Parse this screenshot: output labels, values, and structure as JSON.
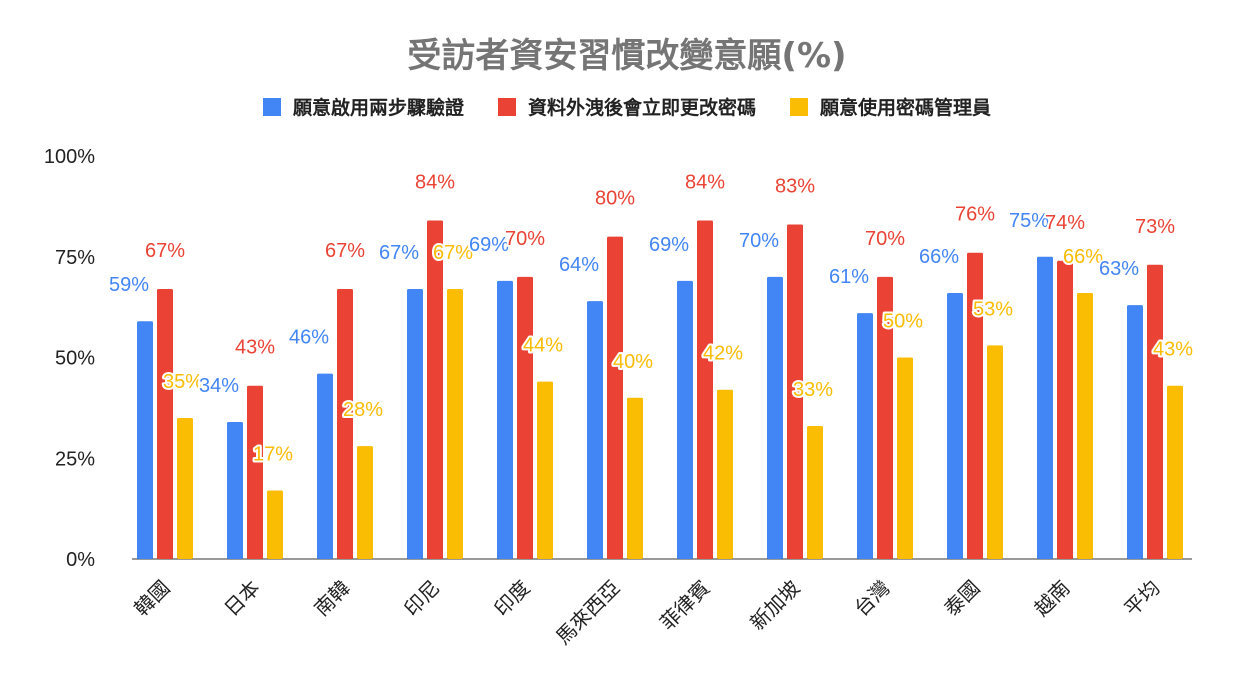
{
  "chart_data": {
    "type": "bar",
    "title": "受訪者資安習慣改變意願(%)",
    "categories": [
      "韓國",
      "日本",
      "南韓",
      "印尼",
      "印度",
      "馬來西亞",
      "菲律賓",
      "新加坡",
      "台灣",
      "泰國",
      "越南",
      "平均"
    ],
    "series": [
      {
        "name": "願意啟用兩步驟驗證",
        "color": "#4285f4",
        "values": [
          59,
          34,
          46,
          67,
          69,
          64,
          69,
          70,
          61,
          66,
          75,
          63
        ]
      },
      {
        "name": "資料外洩後會立即更改密碼",
        "color": "#ea4335",
        "values": [
          67,
          43,
          67,
          84,
          70,
          80,
          84,
          83,
          70,
          76,
          74,
          73
        ]
      },
      {
        "name": "願意使用密碼管理員",
        "color": "#fbbc04",
        "values": [
          35,
          17,
          28,
          67,
          44,
          40,
          42,
          33,
          50,
          53,
          66,
          43
        ]
      }
    ],
    "y_ticks": [
      "0%",
      "25%",
      "50%",
      "75%",
      "100%"
    ],
    "ylim": [
      0,
      100
    ],
    "value_suffix": "%",
    "legend_position": "top",
    "grid": false
  }
}
